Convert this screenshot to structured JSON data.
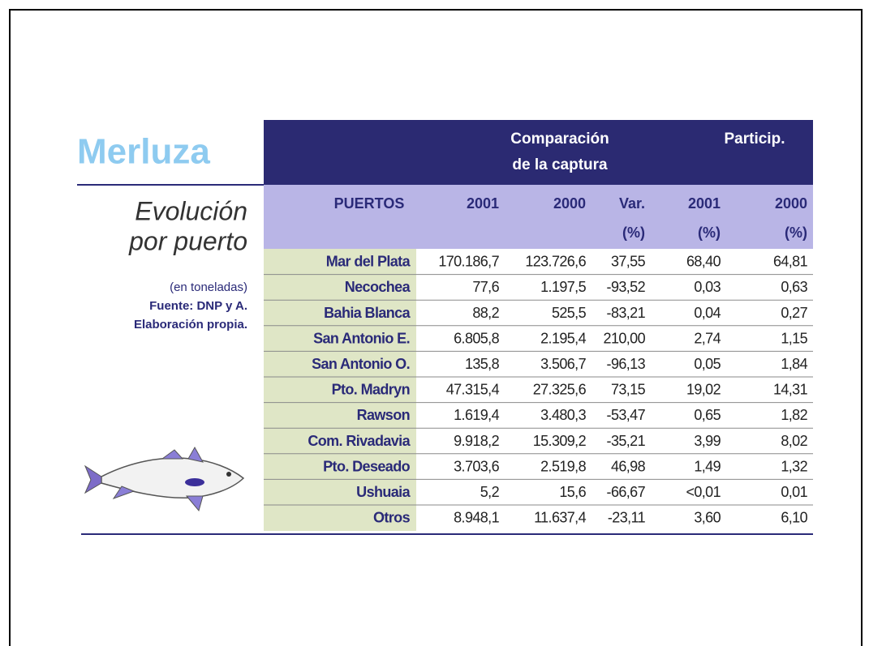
{
  "left": {
    "title": "Merluza",
    "subtitle_lines": [
      "Evolución",
      "por puerto"
    ],
    "notes": [
      "(en toneladas)",
      "Fuente: DNP y A.",
      "Elaboración propia."
    ]
  },
  "table": {
    "group_headers": [
      [
        "Comparación",
        "de la captura"
      ],
      [
        "Particip."
      ]
    ],
    "columns": [
      [
        "PUERTOS"
      ],
      [
        "2001"
      ],
      [
        "2000"
      ],
      [
        "Var.",
        "(%)"
      ],
      [
        "2001",
        "(%)"
      ],
      [
        "2000",
        "(%)"
      ]
    ],
    "rows": [
      [
        "Mar del Plata",
        "170.186,7",
        "123.726,6",
        "37,55",
        "68,40",
        "64,81"
      ],
      [
        "Necochea",
        "77,6",
        "1.197,5",
        "-93,52",
        "0,03",
        "0,63"
      ],
      [
        "Bahia Blanca",
        "88,2",
        "525,5",
        "-83,21",
        "0,04",
        "0,27"
      ],
      [
        "San Antonio E.",
        "6.805,8",
        "2.195,4",
        "210,00",
        "2,74",
        "1,15"
      ],
      [
        "San Antonio O.",
        "135,8",
        "3.506,7",
        "-96,13",
        "0,05",
        "1,84"
      ],
      [
        "Pto. Madryn",
        "47.315,4",
        "27.325,6",
        "73,15",
        "19,02",
        "14,31"
      ],
      [
        "Rawson",
        "1.619,4",
        "3.480,3",
        "-53,47",
        "0,65",
        "1,82"
      ],
      [
        "Com. Rivadavia",
        "9.918,2",
        "15.309,2",
        "-35,21",
        "3,99",
        "8,02"
      ],
      [
        "Pto. Deseado",
        "3.703,6",
        "2.519,8",
        "46,98",
        "1,49",
        "1,32"
      ],
      [
        "Ushuaia",
        "5,2",
        "15,6",
        "-66,67",
        "<0,01",
        "0,01"
      ],
      [
        "Otros",
        "8.948,1",
        "11.637,4",
        "-23,11",
        "3,60",
        "6,10"
      ]
    ]
  }
}
